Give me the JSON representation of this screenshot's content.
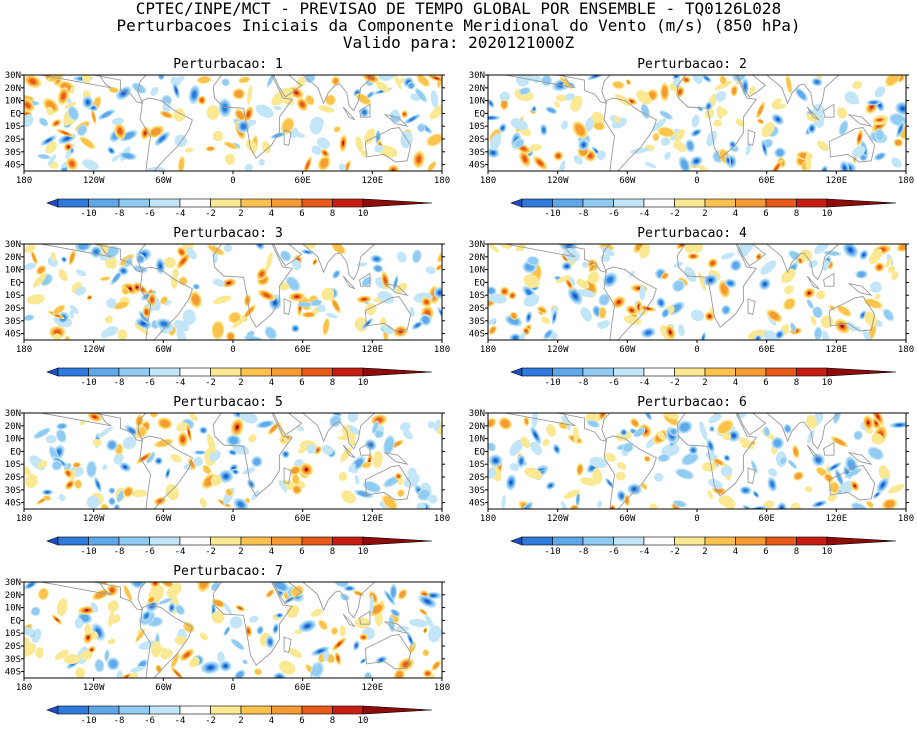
{
  "header": {
    "line1": "CPTEC/INPE/MCT - PREVISAO DE TEMPO GLOBAL POR ENSEMBLE - TQ0126L028",
    "line2": "Perturbacoes Iniciais da Componente Meridional do Vento (m/s) (850 hPa)",
    "line3": "Valido para: 2020121000Z"
  },
  "chart_data": {
    "type": "heatmap",
    "panels": [
      {
        "title": "Perturbacao: 1"
      },
      {
        "title": "Perturbacao: 2"
      },
      {
        "title": "Perturbacao: 3"
      },
      {
        "title": "Perturbacao: 4"
      },
      {
        "title": "Perturbacao: 5"
      },
      {
        "title": "Perturbacao: 6"
      },
      {
        "title": "Perturbacao: 7"
      }
    ],
    "x_ticks": [
      "180",
      "120W",
      "60W",
      "0",
      "60E",
      "120E",
      "180"
    ],
    "y_ticks": [
      "30N",
      "20N",
      "10N",
      "EQ",
      "10S",
      "20S",
      "30S",
      "40S"
    ],
    "xlim": [
      -180,
      180
    ],
    "ylim": [
      -45,
      30
    ],
    "colorbar": {
      "labels": [
        "-10",
        "-8",
        "-6",
        "-4",
        "-2",
        "2",
        "4",
        "6",
        "8",
        "10"
      ],
      "colors": [
        "#1a4fc9",
        "#2e7bdd",
        "#5ea8ea",
        "#92cbf2",
        "#c2e6f7",
        "#ffffff",
        "#fbe893",
        "#fcc24e",
        "#f49a32",
        "#e85a1a",
        "#c81e12",
        "#8f0a0a"
      ]
    },
    "grid": false
  }
}
